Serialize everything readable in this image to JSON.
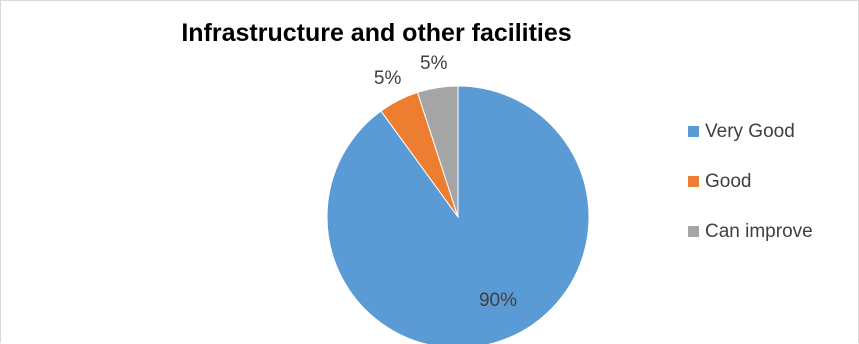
{
  "chart_data": {
    "type": "pie",
    "title": "Infrastructure and other facilities",
    "categories": [
      "Very Good",
      "Good",
      "Can improve"
    ],
    "values": [
      90,
      5,
      5
    ],
    "labels": [
      "90%",
      "5%",
      "5%"
    ],
    "colors": [
      "#5b9bd5",
      "#ed7d31",
      "#a5a5a5"
    ],
    "start_angle_deg": 0,
    "direction": "clockwise",
    "legend": "right"
  }
}
